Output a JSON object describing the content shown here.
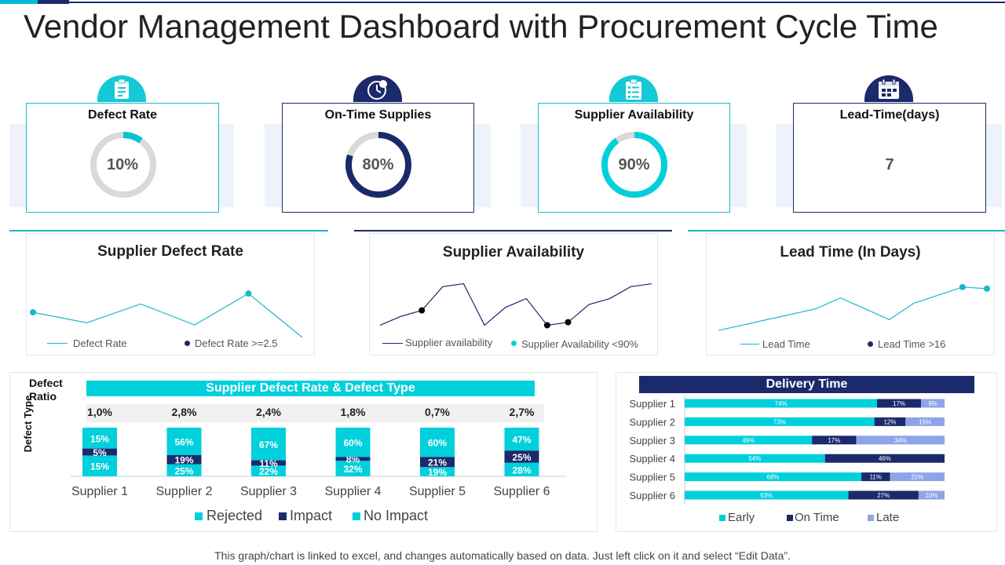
{
  "page": {
    "title": "Vendor Management Dashboard with Procurement Cycle Time",
    "footer": "This graph/chart is linked to excel, and changes automatically based on data. Just left click on it and select “Edit Data”."
  },
  "colors": {
    "teal": "#00d0dc",
    "navy": "#1b2a6b",
    "lavender": "#8ea4e8",
    "grey": "#d9d9d9"
  },
  "kpis": [
    {
      "title": "Defect Rate",
      "value": "10%",
      "percent": 10,
      "ring_color": "#00c4d4",
      "icon": "clipboard-icon"
    },
    {
      "title": "On-Time Supplies",
      "value": "80%",
      "percent": 80,
      "ring_color": "#1b2a6b",
      "icon": "clock-icon"
    },
    {
      "title": "Supplier Availability",
      "value": "90%",
      "percent": 90,
      "ring_color": "#00d0dc",
      "icon": "checklist-icon"
    },
    {
      "title": "Lead-Time(days)",
      "value": "7",
      "icon": "calendar-icon"
    }
  ],
  "chart_data": [
    {
      "type": "line",
      "title": "Supplier Defect Rate",
      "series": [
        {
          "name": "Defect Rate",
          "values": [
            2.7,
            2.2,
            3.1,
            2.1,
            3.6,
            1.5
          ]
        }
      ],
      "highlight": {
        "name": "Defect Rate >=2.5",
        "indices": [
          0,
          4
        ]
      },
      "ylim": [
        1.5,
        4.5
      ]
    },
    {
      "type": "line",
      "title": "Supplier Availability",
      "series": [
        {
          "name": "Supplier availability",
          "values": [
            84,
            87,
            89,
            97,
            98,
            84,
            90,
            93,
            84,
            85,
            91,
            93,
            97,
            98
          ]
        }
      ],
      "highlight": {
        "name": "Supplier Availability <90%",
        "indices": [
          2,
          8,
          9
        ]
      },
      "ylim": [
        82,
        100
      ]
    },
    {
      "type": "line",
      "title": "Lead Time (In Days)",
      "series": [
        {
          "name": "Lead Time",
          "values": [
            10,
            11,
            12,
            13,
            14,
            16,
            14,
            12,
            15,
            16.5,
            18,
            17.7
          ]
        }
      ],
      "highlight": {
        "name": "Lead Time >16",
        "indices": [
          10,
          11
        ]
      },
      "ylim": [
        9,
        20
      ]
    },
    {
      "type": "bar",
      "title": "Supplier Defect Rate & Defect Type",
      "ylabel_top": "Defect Ratio",
      "ylabel": "Defect Type",
      "categories": [
        "Supplier 1",
        "Supplier 2",
        "Supplier 3",
        "Supplier 4",
        "Supplier 5",
        "Supplier 6"
      ],
      "defect_ratio": [
        "1,0%",
        "2,8%",
        "2,4%",
        "1,8%",
        "0,7%",
        "2,7%"
      ],
      "series": [
        {
          "name": "Rejected",
          "values": [
            15,
            25,
            22,
            32,
            19,
            28
          ],
          "color": "#00d0dc"
        },
        {
          "name": "Impact",
          "values": [
            5,
            19,
            11,
            8,
            21,
            25
          ],
          "color": "#1b2a6b"
        },
        {
          "name": "No Impact",
          "values": [
            15,
            56,
            67,
            60,
            60,
            47
          ],
          "color": "#00d0dc"
        }
      ]
    },
    {
      "type": "bar",
      "title": "Delivery Time",
      "orientation": "horizontal",
      "categories": [
        "Supplier 1",
        "Supplier 2",
        "Supplier 3",
        "Supplier 4",
        "Supplier 5",
        "Supplier 6"
      ],
      "series": [
        {
          "name": "Early",
          "values": [
            74,
            73,
            49,
            54,
            68,
            63
          ],
          "color": "#00d0dc"
        },
        {
          "name": "On Time",
          "values": [
            17,
            12,
            17,
            46,
            11,
            27
          ],
          "color": "#1b2a6b"
        },
        {
          "name": "Late",
          "values": [
            9,
            15,
            34,
            0,
            21,
            10
          ],
          "color": "#8ea4e8"
        }
      ]
    }
  ]
}
